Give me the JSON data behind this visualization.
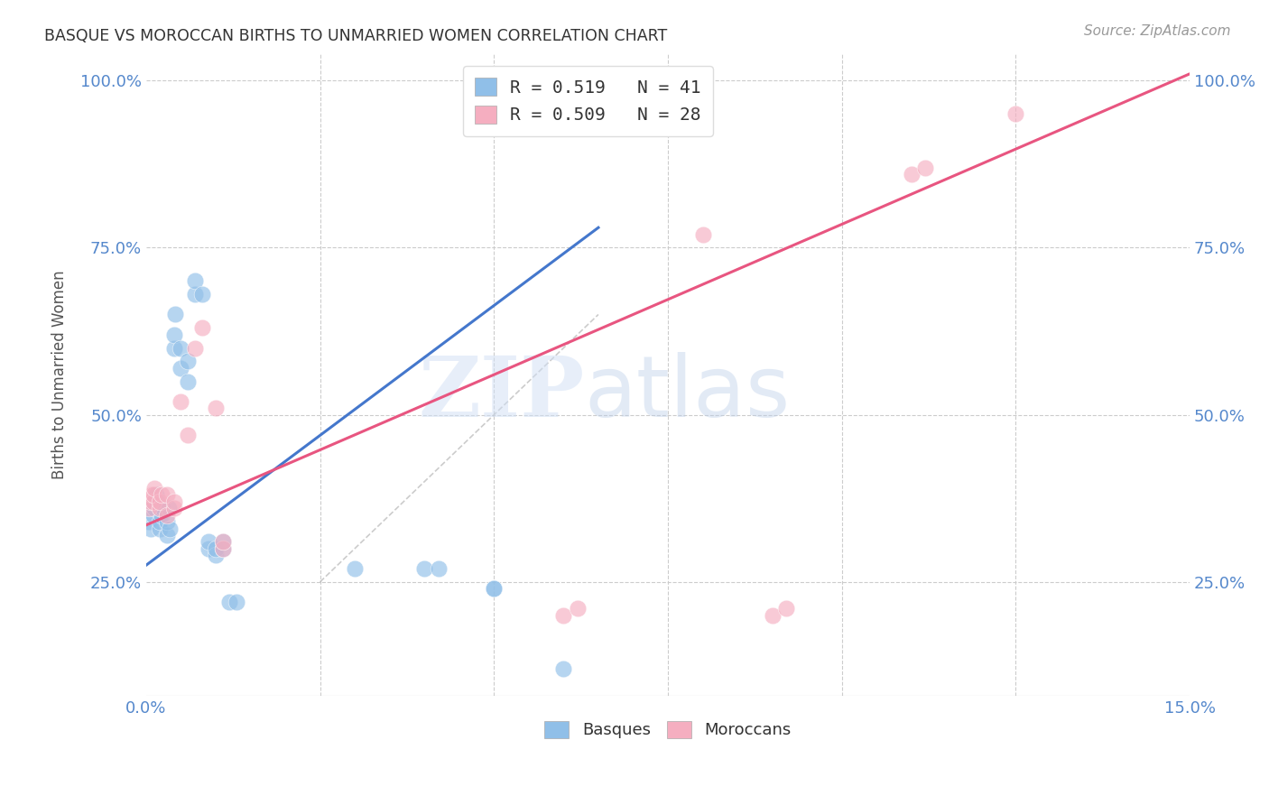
{
  "title": "BASQUE VS MOROCCAN BIRTHS TO UNMARRIED WOMEN CORRELATION CHART",
  "source": "Source: ZipAtlas.com",
  "ylabel": "Births to Unmarried Women",
  "xlim": [
    0.0,
    0.15
  ],
  "ylim": [
    0.08,
    1.04
  ],
  "xticks": [
    0.0,
    0.025,
    0.05,
    0.075,
    0.1,
    0.125,
    0.15
  ],
  "xticklabels": [
    "0.0%",
    "",
    "",
    "",
    "",
    "",
    "15.0%"
  ],
  "yticks_left": [
    0.25,
    0.5,
    0.75,
    1.0
  ],
  "yticklabels_left": [
    "25.0%",
    "50.0%",
    "75.0%",
    "100.0%"
  ],
  "hgrid_lines": [
    0.25,
    0.5,
    0.75,
    1.0
  ],
  "vgrid_lines": [
    0.025,
    0.05,
    0.075,
    0.1,
    0.125
  ],
  "legend_blue": "R = 0.519   N = 41",
  "legend_pink": "R = 0.509   N = 28",
  "blue_color": "#90bfe8",
  "pink_color": "#f5aec0",
  "blue_line_color": "#4477cc",
  "pink_line_color": "#e85580",
  "watermark_zip": "ZIP",
  "watermark_atlas": "atlas",
  "basques_x": [
    0.0004,
    0.0006,
    0.0008,
    0.001,
    0.001,
    0.0012,
    0.0014,
    0.0016,
    0.002,
    0.002,
    0.002,
    0.0022,
    0.0024,
    0.003,
    0.003,
    0.0032,
    0.0034,
    0.004,
    0.004,
    0.0042,
    0.005,
    0.005,
    0.006,
    0.006,
    0.007,
    0.007,
    0.008,
    0.009,
    0.009,
    0.01,
    0.01,
    0.011,
    0.011,
    0.012,
    0.013,
    0.03,
    0.04,
    0.042,
    0.05,
    0.05,
    0.06
  ],
  "basques_y": [
    0.34,
    0.33,
    0.36,
    0.35,
    0.37,
    0.36,
    0.38,
    0.37,
    0.33,
    0.34,
    0.36,
    0.35,
    0.36,
    0.32,
    0.34,
    0.36,
    0.33,
    0.6,
    0.62,
    0.65,
    0.57,
    0.6,
    0.55,
    0.58,
    0.68,
    0.7,
    0.68,
    0.3,
    0.31,
    0.29,
    0.3,
    0.3,
    0.31,
    0.22,
    0.22,
    0.27,
    0.27,
    0.27,
    0.24,
    0.24,
    0.12
  ],
  "moroccans_x": [
    0.0004,
    0.0006,
    0.0008,
    0.001,
    0.001,
    0.0012,
    0.002,
    0.002,
    0.0022,
    0.003,
    0.003,
    0.004,
    0.004,
    0.005,
    0.006,
    0.007,
    0.008,
    0.01,
    0.011,
    0.011,
    0.06,
    0.062,
    0.08,
    0.09,
    0.092,
    0.11,
    0.112,
    0.125
  ],
  "moroccans_y": [
    0.36,
    0.37,
    0.38,
    0.37,
    0.38,
    0.39,
    0.36,
    0.37,
    0.38,
    0.35,
    0.38,
    0.36,
    0.37,
    0.52,
    0.47,
    0.6,
    0.63,
    0.51,
    0.3,
    0.31,
    0.2,
    0.21,
    0.77,
    0.2,
    0.21,
    0.86,
    0.87,
    0.95
  ],
  "blue_line_x": [
    0.0,
    0.065
  ],
  "blue_line_y": [
    0.275,
    0.78
  ],
  "pink_line_x": [
    0.0,
    0.15
  ],
  "pink_line_y": [
    0.335,
    1.01
  ],
  "ref_line_x": [
    0.025,
    0.065
  ],
  "ref_line_y": [
    0.25,
    0.65
  ]
}
